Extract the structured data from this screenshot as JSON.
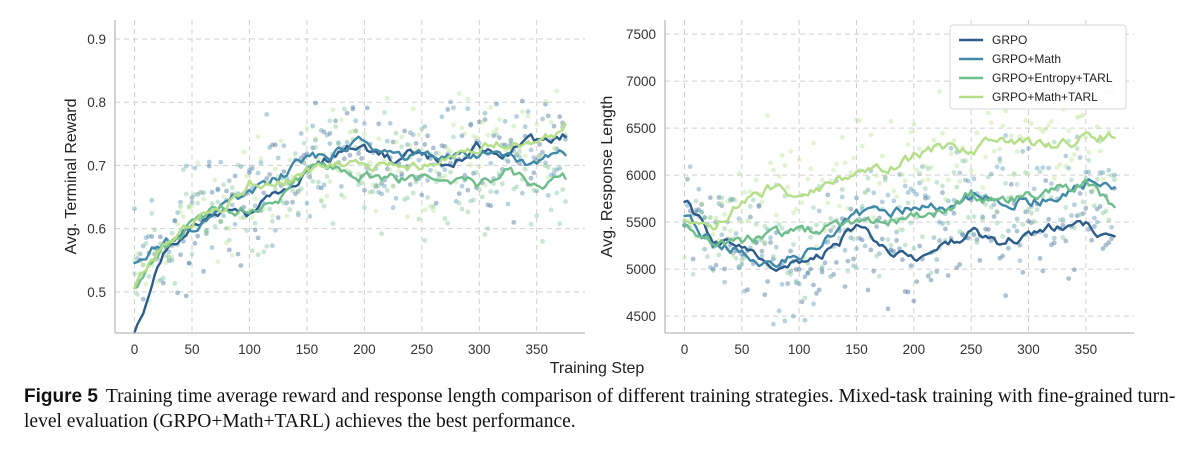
{
  "chart_data": [
    {
      "type": "line",
      "title": "",
      "xlabel": "Training Step",
      "ylabel": "Avg. Terminal Reward",
      "xlim": [
        -17,
        392
      ],
      "ylim": [
        0.435,
        0.93
      ],
      "xticks": [
        "0",
        "50",
        "100",
        "150",
        "200",
        "250",
        "300",
        "350"
      ],
      "xtick_values": [
        0,
        50,
        100,
        150,
        200,
        250,
        300,
        350
      ],
      "yticks": [
        "0.5",
        "0.6",
        "0.7",
        "0.8",
        "0.9"
      ],
      "ytick_values": [
        0.5,
        0.6,
        0.7,
        0.8,
        0.9
      ],
      "grid": true,
      "x": [
        0,
        25,
        50,
        75,
        100,
        125,
        150,
        175,
        200,
        225,
        250,
        275,
        300,
        325,
        350,
        375
      ],
      "series": [
        {
          "name": "GRPO",
          "values": [
            0.44,
            0.56,
            0.6,
            0.63,
            0.62,
            0.66,
            0.69,
            0.72,
            0.73,
            0.71,
            0.72,
            0.7,
            0.73,
            0.72,
            0.74,
            0.75
          ],
          "scatter_spread": 0.06
        },
        {
          "name": "GRPO+Math",
          "values": [
            0.55,
            0.58,
            0.6,
            0.64,
            0.66,
            0.68,
            0.71,
            0.72,
            0.74,
            0.71,
            0.72,
            0.71,
            0.72,
            0.71,
            0.7,
            0.72
          ],
          "scatter_spread": 0.06
        },
        {
          "name": "GRPO+Entropy+TARL",
          "values": [
            0.51,
            0.57,
            0.61,
            0.63,
            0.63,
            0.65,
            0.69,
            0.69,
            0.68,
            0.68,
            0.68,
            0.68,
            0.67,
            0.69,
            0.67,
            0.68
          ],
          "scatter_spread": 0.06
        },
        {
          "name": "GRPO+Math+TARL",
          "values": [
            0.51,
            0.57,
            0.61,
            0.63,
            0.67,
            0.67,
            0.69,
            0.7,
            0.7,
            0.7,
            0.7,
            0.71,
            0.73,
            0.74,
            0.74,
            0.76
          ],
          "scatter_spread": 0.06
        }
      ]
    },
    {
      "type": "line",
      "title": "",
      "xlabel": "Training Step",
      "ylabel": "Avg. Response Length",
      "xlim": [
        -17,
        392
      ],
      "ylim": [
        4320,
        7650
      ],
      "xticks": [
        "0",
        "50",
        "100",
        "150",
        "200",
        "250",
        "300",
        "350"
      ],
      "xtick_values": [
        0,
        50,
        100,
        150,
        200,
        250,
        300,
        350
      ],
      "yticks": [
        "4500",
        "5000",
        "5500",
        "6000",
        "6500",
        "7000",
        "7500"
      ],
      "ytick_values": [
        4500,
        5000,
        5500,
        6000,
        6500,
        7000,
        7500
      ],
      "grid": true,
      "legend": "top-right",
      "x": [
        0,
        25,
        50,
        75,
        100,
        125,
        150,
        175,
        200,
        225,
        250,
        275,
        300,
        325,
        350,
        375
      ],
      "series": [
        {
          "name": "GRPO",
          "values": [
            5750,
            5300,
            5250,
            5000,
            5050,
            5200,
            5450,
            5200,
            5150,
            5250,
            5400,
            5300,
            5350,
            5450,
            5450,
            5330
          ],
          "scatter_spread": 420
        },
        {
          "name": "GRPO+Math",
          "values": [
            5600,
            5250,
            5200,
            5050,
            5150,
            5350,
            5600,
            5600,
            5650,
            5650,
            5800,
            5750,
            5700,
            5750,
            5900,
            5880
          ],
          "scatter_spread": 420
        },
        {
          "name": "GRPO+Entropy+TARL",
          "values": [
            5500,
            5300,
            5300,
            5350,
            5400,
            5450,
            5500,
            5500,
            5550,
            5600,
            5800,
            5700,
            5800,
            5850,
            5900,
            5650
          ],
          "scatter_spread": 420
        },
        {
          "name": "GRPO+Math+TARL",
          "values": [
            5550,
            5400,
            5750,
            5850,
            5800,
            5900,
            6000,
            6050,
            6200,
            6300,
            6250,
            6400,
            6350,
            6300,
            6400,
            6400
          ],
          "scatter_spread": 420
        }
      ]
    }
  ],
  "colors": {
    "GRPO": "#2b5c8c",
    "GRPO+Math": "#3f88a8",
    "GRPO+Entropy+TARL": "#6dbe8b",
    "GRPO+Math+TARL": "#b4df86",
    "axis": "#b9b9b9",
    "grid": "#cfcfcf"
  },
  "shared_xlabel": "Training Step",
  "caption": {
    "label": "Figure 5",
    "text": "Training time average reward and response length comparison of different training strategies. Mixed-task training with fine-grained turn-level evaluation (GRPO+Math+TARL) achieves the best performance."
  }
}
